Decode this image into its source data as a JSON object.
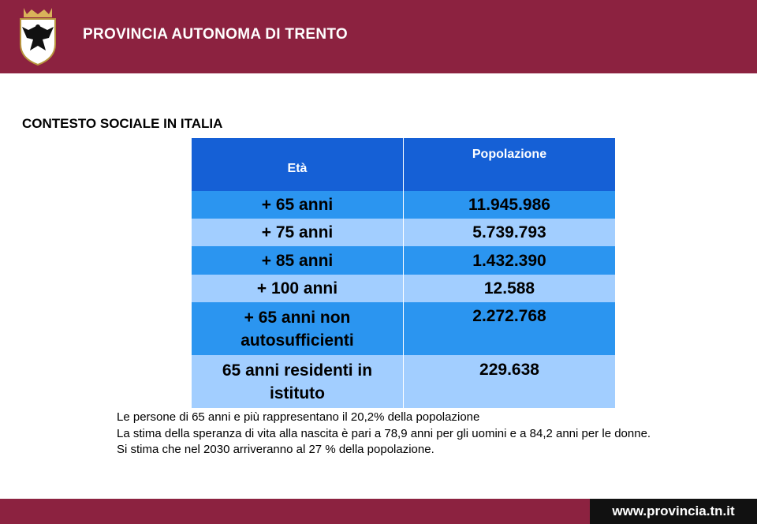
{
  "header": {
    "title": "PROVINCIA AUTONOMA DI TRENTO"
  },
  "section_title": "CONTESTO SOCIALE IN ITALIA",
  "table": {
    "columns": [
      "Età",
      "Popolazione"
    ],
    "rows": [
      [
        "+ 65 anni",
        "11.945.986"
      ],
      [
        "+ 75 anni",
        "5.739.793"
      ],
      [
        "+ 85 anni",
        "1.432.390"
      ],
      [
        "+ 100 anni",
        "12.588"
      ],
      [
        "+ 65 anni non autosufficienti",
        "2.272.768"
      ],
      [
        "65 anni residenti in istituto",
        "229.638"
      ]
    ]
  },
  "notes": [
    "Le persone di 65 anni e più rappresentano il 20,2% della popolazione",
    "La stima della speranza di vita alla nascita è pari a 78,9 anni per gli uomini e a 84,2 anni per le donne.",
    "Si stima che nel 2030 arriveranno  al 27 % della popolazione."
  ],
  "footer": {
    "url": "www.provincia.tn.it"
  }
}
